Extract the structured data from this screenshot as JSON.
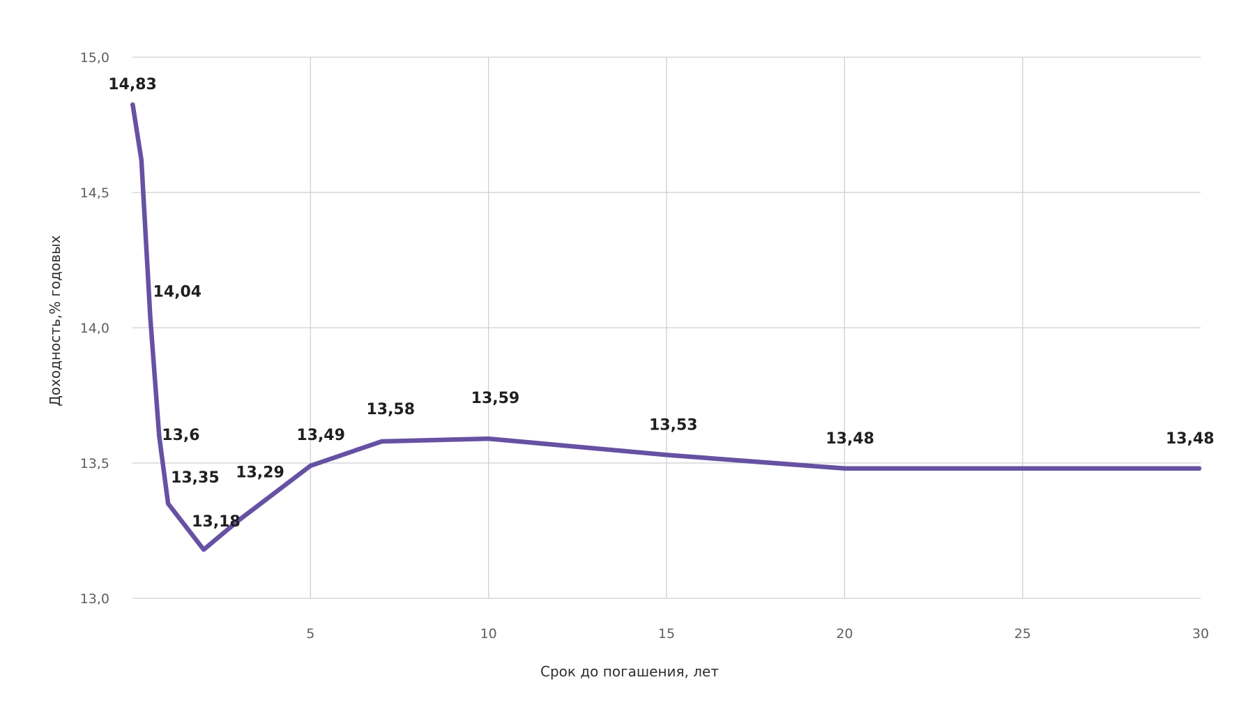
{
  "chart_data": {
    "type": "line",
    "xlabel": "Срок до погашения, лет",
    "ylabel": "Доходность,% годовых",
    "xlim": [
      0,
      30
    ],
    "ylim": [
      13.0,
      15.0
    ],
    "grid": true,
    "y_ticks": [
      "13,0",
      "13,5",
      "14,0",
      "14,5",
      "15,0"
    ],
    "x_ticks": [
      "5",
      "10",
      "15",
      "20",
      "25",
      "30"
    ],
    "line_color": "#6651a3",
    "series": [
      {
        "x": [
          0.0,
          0.25,
          0.5,
          0.75,
          1,
          2,
          3,
          5,
          7,
          10,
          15,
          20,
          30
        ],
        "y": [
          14.83,
          14.62,
          14.04,
          13.6,
          13.35,
          13.18,
          13.29,
          13.49,
          13.58,
          13.59,
          13.53,
          13.48,
          13.48
        ]
      }
    ],
    "data_labels": [
      "14,83",
      "14,04",
      "13,6",
      "13,35",
      "13,18",
      "13,29",
      "13,49",
      "13,58",
      "13,59",
      "13,53",
      "13,48",
      "13,48"
    ]
  }
}
